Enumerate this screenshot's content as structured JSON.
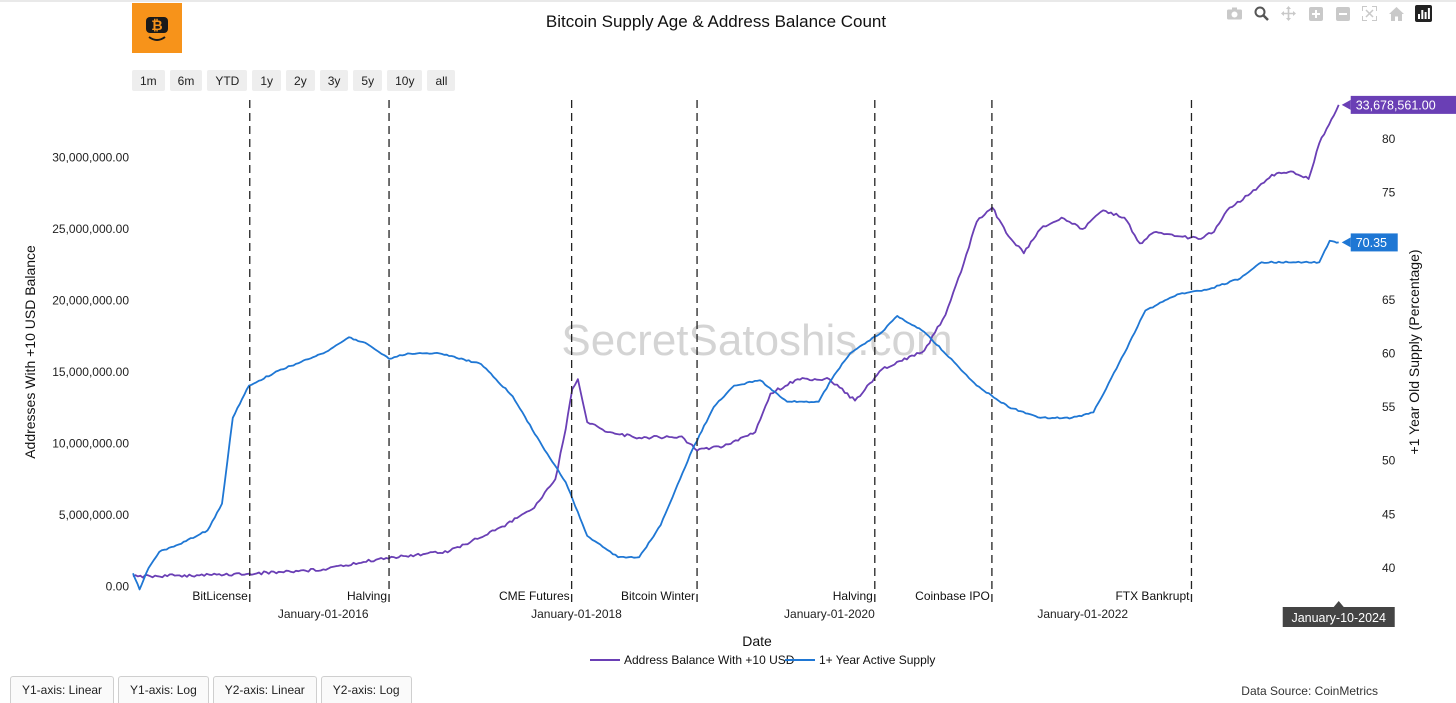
{
  "logo": {
    "icon": "bitcoin-smiley-icon",
    "color": "#f7931a"
  },
  "modebar": [
    "camera-icon",
    "zoom-icon",
    "pan-icon",
    "zoom-in-icon",
    "zoom-out-icon",
    "autoscale-icon",
    "home-icon",
    "chart-logo-icon"
  ],
  "range_buttons": [
    "1m",
    "6m",
    "YTD",
    "1y",
    "2y",
    "3y",
    "5y",
    "10y",
    "all"
  ],
  "axis_tabs": [
    "Y1-axis: Linear",
    "Y1-axis: Log",
    "Y2-axis: Linear",
    "Y2-axis: Log"
  ],
  "footer": {
    "source": "Data Source: CoinMetrics"
  },
  "watermark": "SecretSatoshis.com",
  "chart_data": {
    "type": "line",
    "title": "Bitcoin Supply Age & Address Balance Count",
    "xlabel": "Date",
    "ylabel": "Addresses With +10 USD Balance",
    "y2label": "+1 Year Old Supply (Percentage)",
    "xlim": [
      "2014-07-01",
      "2024-01-31"
    ],
    "ylim": [
      -800000,
      34300000
    ],
    "y2lim": [
      37.2,
      84
    ],
    "y_ticks": [
      0,
      5000000,
      10000000,
      15000000,
      20000000,
      25000000,
      30000000
    ],
    "y_tick_labels": [
      "0.00",
      "5,000,000.00",
      "10,000,000.00",
      "15,000,000.00",
      "20,000,000.00",
      "25,000,000.00",
      "30,000,000.00"
    ],
    "y2_ticks": [
      40,
      45,
      50,
      55,
      60,
      65,
      70,
      75,
      80
    ],
    "y2_tick_labels": [
      "40",
      "45",
      "50",
      "55",
      "60",
      "65",
      "70",
      "75",
      "80"
    ],
    "x_ticks": [
      "2016-01-01",
      "2018-01-01",
      "2020-01-01",
      "2022-01-01"
    ],
    "x_tick_labels": [
      "January-01-2016",
      "January-01-2018",
      "January-01-2020",
      "January-01-2022"
    ],
    "grid": false,
    "legend_position": "bottom-center",
    "events": [
      {
        "date": "2015-06-03",
        "label": "BitLicense"
      },
      {
        "date": "2016-07-09",
        "label": "Halving"
      },
      {
        "date": "2017-12-18",
        "label": "CME Futures"
      },
      {
        "date": "2018-12-15",
        "label": "Bitcoin Winter"
      },
      {
        "date": "2020-05-11",
        "label": "Halving"
      },
      {
        "date": "2021-04-14",
        "label": "Coinbase IPO"
      },
      {
        "date": "2022-11-11",
        "label": "FTX Bankrupt"
      }
    ],
    "hover_label": "January-10-2024",
    "series": [
      {
        "name": "Address Balance With +10 USD",
        "axis": "y",
        "color": "#6a3fb5",
        "last_value_label": "33,678,561.00",
        "points": [
          [
            "2014-07-01",
            700000
          ],
          [
            "2015-01-01",
            800000
          ],
          [
            "2015-06-01",
            900000
          ],
          [
            "2016-01-01",
            1200000
          ],
          [
            "2016-07-01",
            2000000
          ],
          [
            "2017-01-01",
            2500000
          ],
          [
            "2017-06-01",
            4200000
          ],
          [
            "2017-09-01",
            5500000
          ],
          [
            "2017-11-01",
            7500000
          ],
          [
            "2017-12-01",
            11000000
          ],
          [
            "2017-12-20",
            13800000
          ],
          [
            "2018-01-05",
            14500000
          ],
          [
            "2018-02-01",
            11500000
          ],
          [
            "2018-04-01",
            10800000
          ],
          [
            "2018-07-01",
            10400000
          ],
          [
            "2018-11-01",
            10500000
          ],
          [
            "2018-12-15",
            9500000
          ],
          [
            "2019-03-01",
            9800000
          ],
          [
            "2019-06-01",
            10800000
          ],
          [
            "2019-07-15",
            13500000
          ],
          [
            "2019-10-01",
            14500000
          ],
          [
            "2020-01-01",
            14500000
          ],
          [
            "2020-03-15",
            13000000
          ],
          [
            "2020-06-01",
            15200000
          ],
          [
            "2020-10-01",
            16500000
          ],
          [
            "2020-12-01",
            19000000
          ],
          [
            "2021-01-15",
            22000000
          ],
          [
            "2021-03-01",
            25500000
          ],
          [
            "2021-04-15",
            26500000
          ],
          [
            "2021-06-01",
            24500000
          ],
          [
            "2021-07-15",
            23300000
          ],
          [
            "2021-09-01",
            25000000
          ],
          [
            "2021-11-01",
            25800000
          ],
          [
            "2022-01-01",
            25000000
          ],
          [
            "2022-03-01",
            26300000
          ],
          [
            "2022-05-01",
            25800000
          ],
          [
            "2022-06-15",
            24000000
          ],
          [
            "2022-08-01",
            24800000
          ],
          [
            "2022-10-01",
            24500000
          ],
          [
            "2022-12-01",
            24300000
          ],
          [
            "2023-01-15",
            24800000
          ],
          [
            "2023-03-01",
            26500000
          ],
          [
            "2023-05-01",
            27500000
          ],
          [
            "2023-07-01",
            28800000
          ],
          [
            "2023-09-01",
            29000000
          ],
          [
            "2023-10-15",
            28500000
          ],
          [
            "2023-11-15",
            31000000
          ],
          [
            "2024-01-10",
            33678561
          ]
        ]
      },
      {
        "name": "1+ Year Active Supply",
        "axis": "y2",
        "color": "#1f77d4",
        "last_value_label": "70.35",
        "points": [
          [
            "2014-07-01",
            39.5
          ],
          [
            "2014-07-20",
            38
          ],
          [
            "2014-08-15",
            40
          ],
          [
            "2014-09-15",
            41.5
          ],
          [
            "2014-12-01",
            42.5
          ],
          [
            "2015-02-01",
            43.5
          ],
          [
            "2015-03-15",
            46
          ],
          [
            "2015-04-15",
            54
          ],
          [
            "2015-06-01",
            57
          ],
          [
            "2015-09-01",
            58.5
          ],
          [
            "2016-01-01",
            60
          ],
          [
            "2016-03-15",
            61.5
          ],
          [
            "2016-05-01",
            61
          ],
          [
            "2016-07-09",
            59.5
          ],
          [
            "2016-09-01",
            60
          ],
          [
            "2016-12-01",
            60
          ],
          [
            "2017-04-01",
            59
          ],
          [
            "2017-07-01",
            56
          ],
          [
            "2017-10-01",
            51
          ],
          [
            "2017-12-01",
            48
          ],
          [
            "2018-02-01",
            43
          ],
          [
            "2018-05-01",
            41
          ],
          [
            "2018-07-01",
            41
          ],
          [
            "2018-09-01",
            44
          ],
          [
            "2018-12-01",
            51
          ],
          [
            "2019-02-01",
            55
          ],
          [
            "2019-04-01",
            57
          ],
          [
            "2019-06-15",
            57.5
          ],
          [
            "2019-09-01",
            55.5
          ],
          [
            "2019-12-01",
            55.5
          ],
          [
            "2020-01-15",
            58
          ],
          [
            "2020-03-01",
            60
          ],
          [
            "2020-06-01",
            62
          ],
          [
            "2020-07-15",
            63.5
          ],
          [
            "2020-10-01",
            62
          ],
          [
            "2021-01-01",
            59
          ],
          [
            "2021-03-01",
            57
          ],
          [
            "2021-06-01",
            55
          ],
          [
            "2021-09-01",
            54
          ],
          [
            "2021-12-01",
            54
          ],
          [
            "2022-02-01",
            54.5
          ],
          [
            "2022-05-01",
            60
          ],
          [
            "2022-07-01",
            64
          ],
          [
            "2022-10-01",
            65.5
          ],
          [
            "2023-01-01",
            66
          ],
          [
            "2023-04-01",
            67
          ],
          [
            "2023-06-01",
            68.5
          ],
          [
            "2023-09-01",
            68.5
          ],
          [
            "2023-11-15",
            68.5
          ],
          [
            "2023-12-15",
            70.5
          ],
          [
            "2024-01-10",
            70.35
          ]
        ]
      }
    ]
  }
}
